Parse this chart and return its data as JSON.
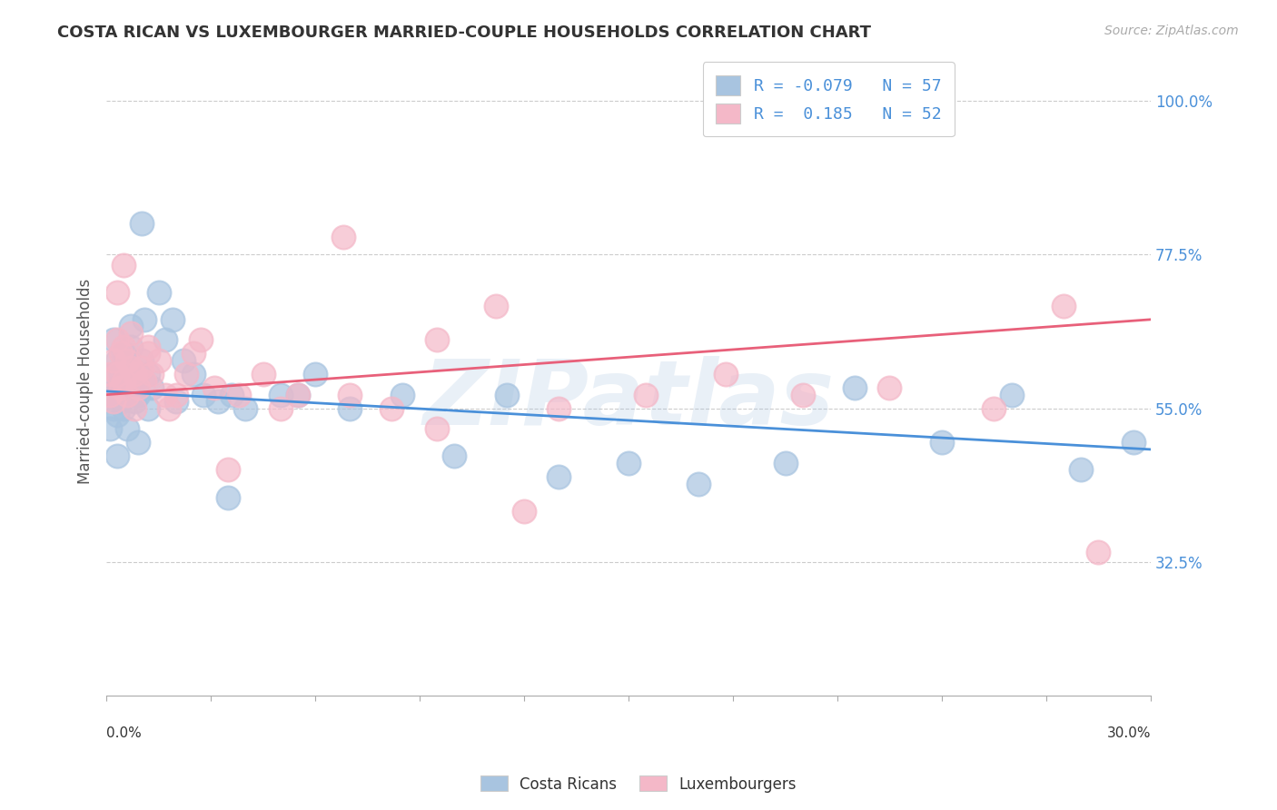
{
  "title": "COSTA RICAN VS LUXEMBOURGER MARRIED-COUPLE HOUSEHOLDS CORRELATION CHART",
  "source": "Source: ZipAtlas.com",
  "ylabel": "Married-couple Households",
  "watermark": "ZIPatlas",
  "blue_R": -0.079,
  "blue_N": 57,
  "pink_R": 0.185,
  "pink_N": 52,
  "blue_color": "#a8c4e0",
  "pink_color": "#f4b8c8",
  "blue_line_color": "#4a90d9",
  "pink_line_color": "#e8607a",
  "blue_label": "Costa Ricans",
  "pink_label": "Luxembourgers",
  "ytick_vals": [
    0.325,
    0.55,
    0.775,
    1.0
  ],
  "ytick_labels": [
    "32.5%",
    "55.0%",
    "77.5%",
    "100.0%"
  ],
  "xlim": [
    0.0,
    0.3
  ],
  "ylim": [
    0.13,
    1.05
  ],
  "blue_x": [
    0.001,
    0.001,
    0.002,
    0.002,
    0.002,
    0.003,
    0.003,
    0.003,
    0.004,
    0.004,
    0.004,
    0.005,
    0.005,
    0.005,
    0.006,
    0.006,
    0.007,
    0.007,
    0.008,
    0.008,
    0.009,
    0.01,
    0.01,
    0.011,
    0.012,
    0.013,
    0.015,
    0.017,
    0.019,
    0.022,
    0.025,
    0.028,
    0.032,
    0.036,
    0.04,
    0.05,
    0.06,
    0.07,
    0.085,
    0.1,
    0.115,
    0.13,
    0.15,
    0.17,
    0.195,
    0.215,
    0.24,
    0.26,
    0.28,
    0.295,
    0.003,
    0.006,
    0.009,
    0.012,
    0.02,
    0.035,
    0.055
  ],
  "blue_y": [
    0.57,
    0.52,
    0.6,
    0.55,
    0.65,
    0.58,
    0.54,
    0.62,
    0.57,
    0.6,
    0.56,
    0.63,
    0.58,
    0.55,
    0.6,
    0.57,
    0.67,
    0.64,
    0.59,
    0.56,
    0.57,
    0.82,
    0.62,
    0.68,
    0.6,
    0.58,
    0.72,
    0.65,
    0.68,
    0.62,
    0.6,
    0.57,
    0.56,
    0.57,
    0.55,
    0.57,
    0.6,
    0.55,
    0.57,
    0.48,
    0.57,
    0.45,
    0.47,
    0.44,
    0.47,
    0.58,
    0.5,
    0.57,
    0.46,
    0.5,
    0.48,
    0.52,
    0.5,
    0.55,
    0.56,
    0.42,
    0.57
  ],
  "pink_x": [
    0.001,
    0.001,
    0.002,
    0.002,
    0.003,
    0.003,
    0.004,
    0.004,
    0.005,
    0.005,
    0.006,
    0.006,
    0.007,
    0.007,
    0.008,
    0.009,
    0.01,
    0.011,
    0.012,
    0.013,
    0.015,
    0.017,
    0.02,
    0.023,
    0.027,
    0.031,
    0.038,
    0.045,
    0.055,
    0.068,
    0.082,
    0.095,
    0.112,
    0.13,
    0.155,
    0.178,
    0.2,
    0.225,
    0.255,
    0.275,
    0.003,
    0.005,
    0.008,
    0.012,
    0.018,
    0.025,
    0.035,
    0.05,
    0.07,
    0.095,
    0.12,
    0.285
  ],
  "pink_y": [
    0.57,
    0.6,
    0.62,
    0.56,
    0.65,
    0.6,
    0.63,
    0.58,
    0.64,
    0.59,
    0.62,
    0.57,
    0.66,
    0.61,
    0.6,
    0.58,
    0.61,
    0.59,
    0.64,
    0.6,
    0.62,
    0.57,
    0.57,
    0.6,
    0.65,
    0.58,
    0.57,
    0.6,
    0.57,
    0.8,
    0.55,
    0.65,
    0.7,
    0.55,
    0.57,
    0.6,
    0.57,
    0.58,
    0.55,
    0.7,
    0.72,
    0.76,
    0.55,
    0.63,
    0.55,
    0.63,
    0.46,
    0.55,
    0.57,
    0.52,
    0.4,
    0.34
  ]
}
